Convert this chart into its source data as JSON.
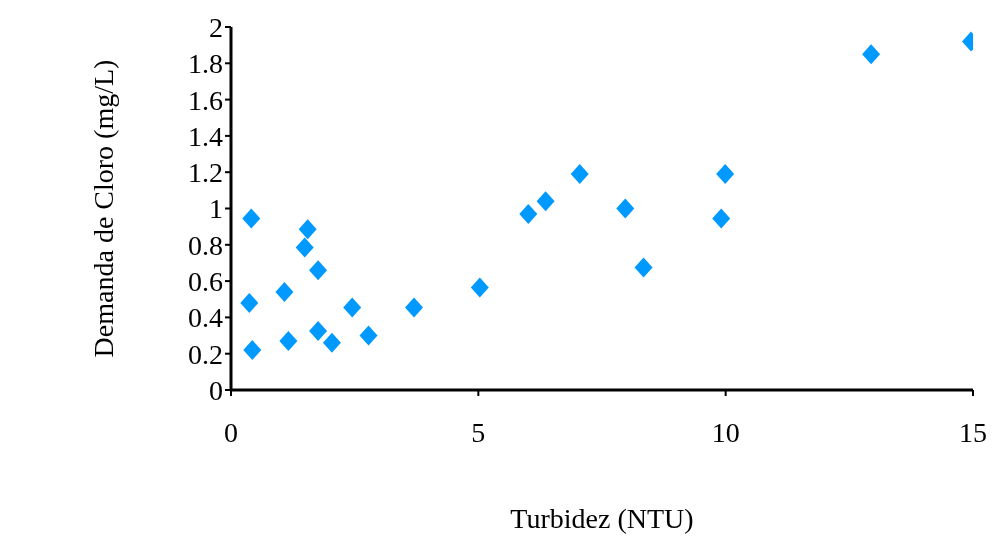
{
  "chart_data": {
    "type": "scatter",
    "xlabel": "Turbidez (NTU)",
    "ylabel": "Demanda de Cloro (mg/L)",
    "x": [
      0.41,
      0.37,
      0.43,
      1.08,
      1.16,
      1.55,
      1.49,
      1.76,
      1.76,
      2.04,
      2.45,
      2.78,
      3.7,
      5.03,
      6.01,
      6.36,
      7.05,
      7.97,
      8.34,
      9.91,
      9.99,
      12.94,
      14.96
    ],
    "series": [
      {
        "color": "#0099ff",
        "values": [
          0.945,
          0.48,
          0.22,
          0.54,
          0.27,
          0.885,
          0.785,
          0.66,
          0.325,
          0.26,
          0.455,
          0.3,
          0.455,
          0.565,
          0.97,
          1.04,
          1.19,
          1.0,
          0.675,
          0.945,
          1.19,
          1.85,
          1.92
        ]
      }
    ],
    "xlim": [
      0,
      15
    ],
    "xticks": [
      0,
      5,
      10,
      15
    ],
    "ylim": [
      0,
      2
    ],
    "yticks": [
      0,
      0.2,
      0.4,
      0.6,
      0.8,
      1,
      1.2,
      1.4,
      1.6,
      1.8,
      2
    ],
    "marker": "diamond",
    "grid": false,
    "legend": false
  }
}
